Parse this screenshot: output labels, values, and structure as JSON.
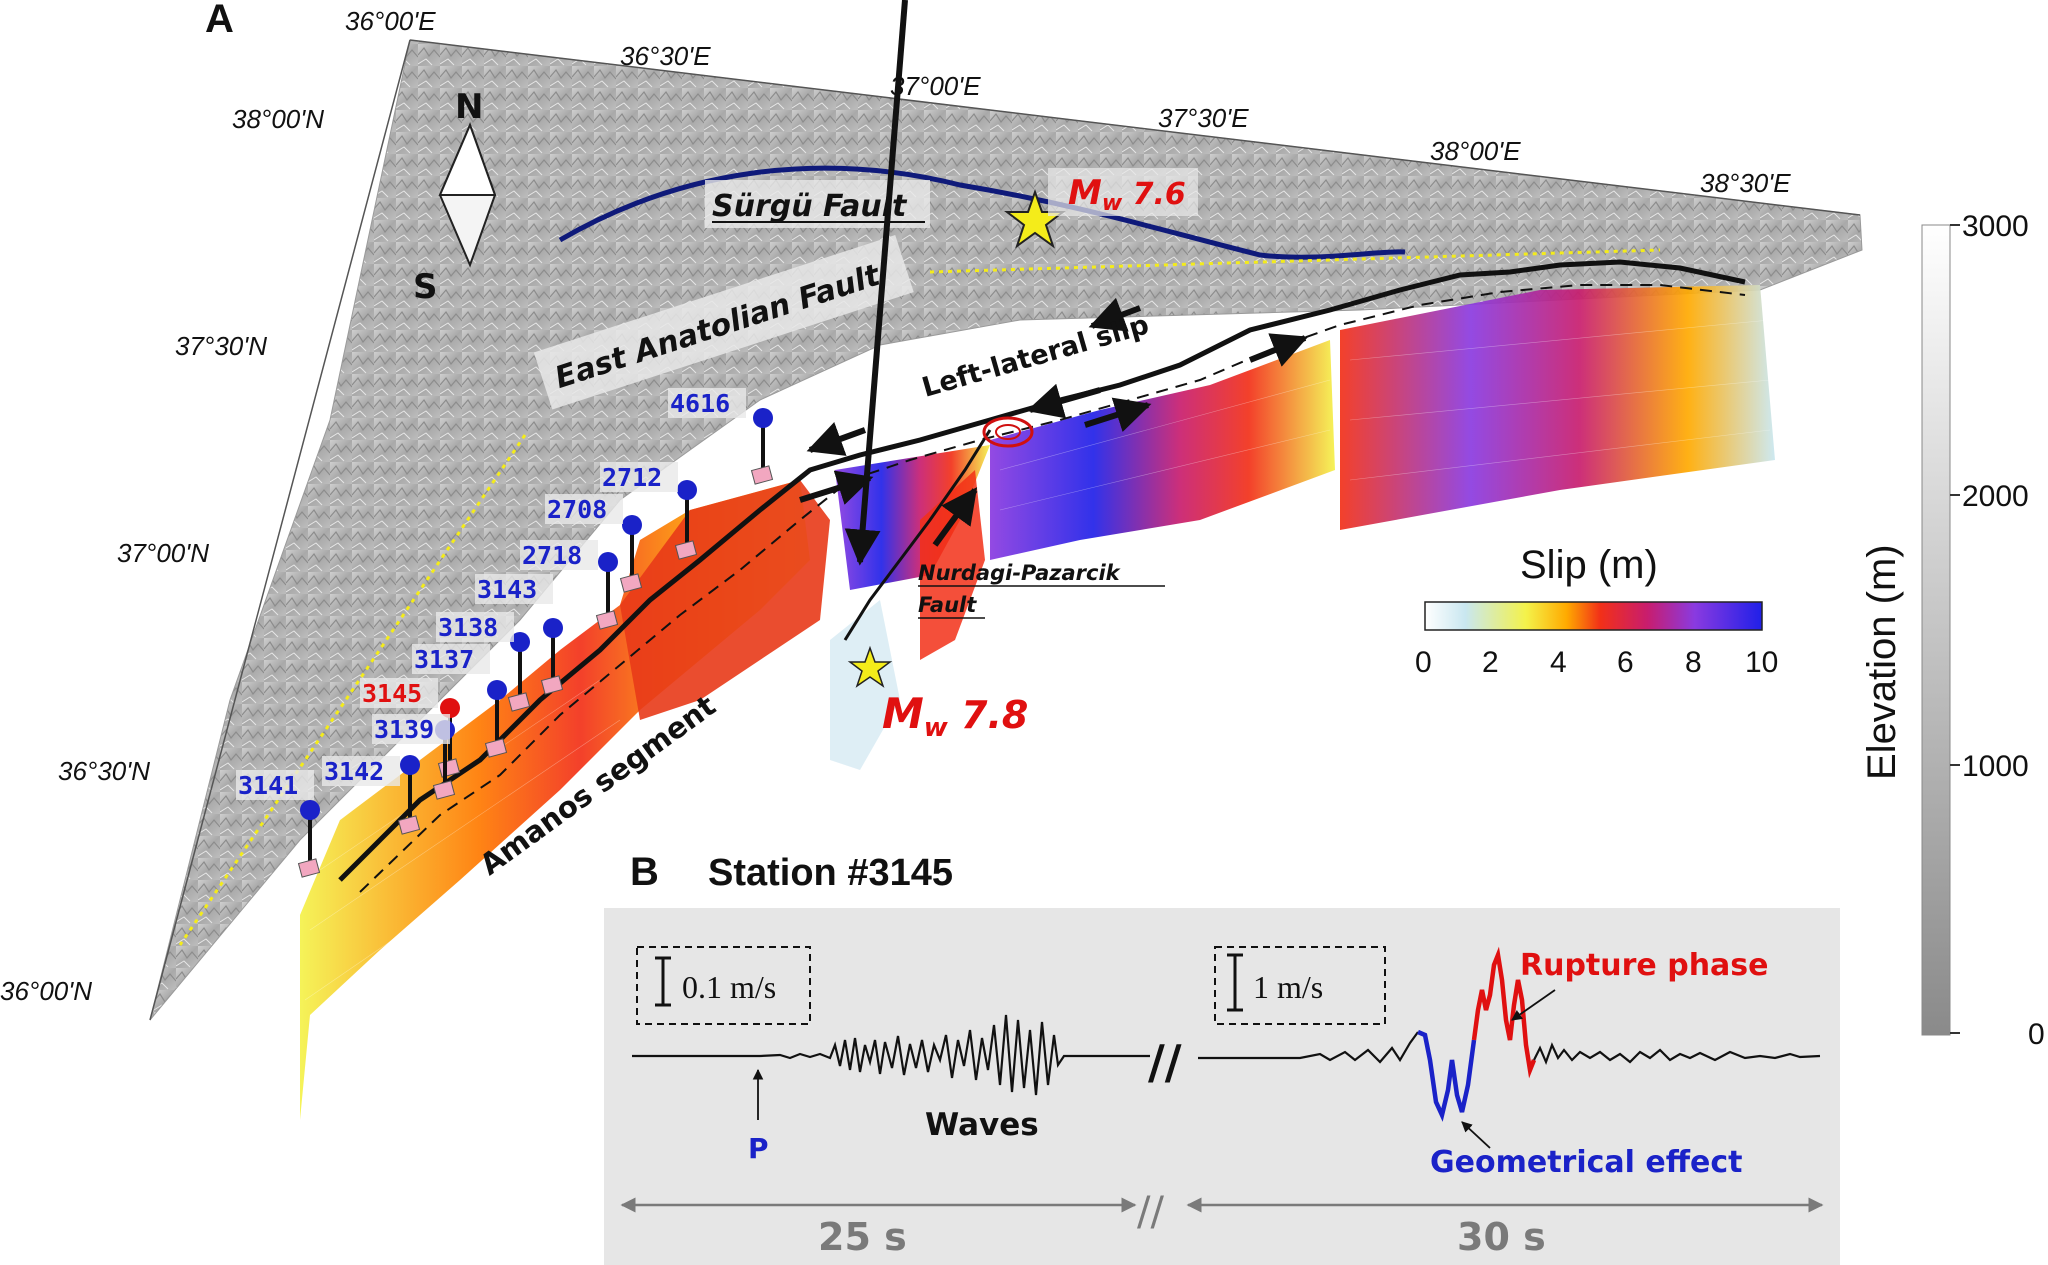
{
  "panel_a": {
    "letter": "A",
    "lon_labels": [
      "36°00'E",
      "36°30'E",
      "37°00'E",
      "37°30'E",
      "38°00'E",
      "38°30'E"
    ],
    "lat_labels": [
      "38°00'N",
      "37°30'N",
      "37°00'N",
      "36°30'N",
      "36°00'N"
    ],
    "compass": {
      "north": "N",
      "south": "S"
    },
    "faults": {
      "surgu": "Sürgü Fault",
      "east_anatolian": "East Anatolian Fault",
      "amanos": "Amanos segment",
      "nurdagi_line1": "Nurdagi-Pazarcik",
      "nurdagi_line2": "Fault",
      "left_lateral": "Left-lateral slip"
    },
    "magnitudes": {
      "m76": {
        "prefix": "M",
        "sub": "w",
        "value": " 7.6"
      },
      "m78": {
        "prefix": "M",
        "sub": "w",
        "value": " 7.8"
      }
    },
    "stations": [
      {
        "id": "4616",
        "color": "#1a22c8"
      },
      {
        "id": "2712",
        "color": "#1a22c8"
      },
      {
        "id": "2708",
        "color": "#1a22c8"
      },
      {
        "id": "2718",
        "color": "#1a22c8"
      },
      {
        "id": "3143",
        "color": "#1a22c8"
      },
      {
        "id": "3138",
        "color": "#1a22c8"
      },
      {
        "id": "3137",
        "color": "#1a22c8"
      },
      {
        "id": "3145",
        "color": "#e01010"
      },
      {
        "id": "3139",
        "color": "#1a22c8"
      },
      {
        "id": "3142",
        "color": "#1a22c8"
      },
      {
        "id": "3141",
        "color": "#1a22c8"
      }
    ],
    "slip_colorbar": {
      "title": "Slip (m)",
      "ticks": [
        "0",
        "2",
        "4",
        "6",
        "8",
        "10"
      ],
      "colors": [
        "#ffffff",
        "#c9e7f0",
        "#f4f24a",
        "#ffaa00",
        "#f23018",
        "#c81d6e",
        "#8a3ae0",
        "#2020e8"
      ]
    },
    "elevation_colorbar": {
      "title": "Elevation (m)",
      "ticks": [
        "3000",
        "2000",
        "1000",
        "0"
      ]
    }
  },
  "panel_b": {
    "letter": "B",
    "title": "Station #3145",
    "scale_left": "0.1 m/s",
    "scale_right": "1 m/s",
    "p_label": "P",
    "waves_label": "Waves",
    "rupture_label": "Rupture phase",
    "geometric_label": "Geometrical effect",
    "time_left": "25 s",
    "time_right": "30 s",
    "break_mark": "//"
  },
  "colors": {
    "station_blue": "#1a22c8",
    "highlight_red": "#e01010",
    "fault_blue": "#0f1a7a",
    "time_gray": "#7a7a7a"
  }
}
